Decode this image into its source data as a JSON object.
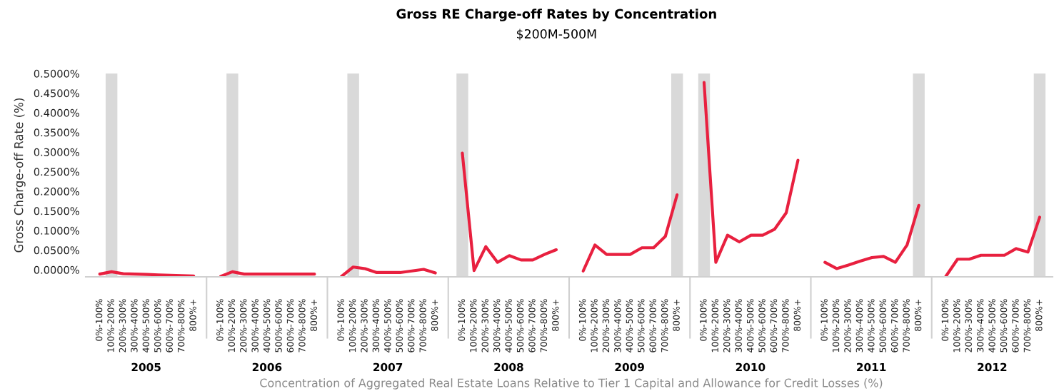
{
  "chart_data": [
    {
      "type": "line",
      "ylabel": "Gross Charge-off Rate (%)",
      "xlabel": "2005",
      "annotations": [
        "Concentration of Aggregated Real Estate Loans Relative to Tier 1 Capital and Allowance for Credit Losses (%)"
      ],
      "categories": [
        "0%-100%",
        "100%-200%",
        "200%-300%",
        "300%-400%",
        "400%-500%",
        "500%-600%",
        "600%-700%",
        "700%-800%",
        "800%+"
      ],
      "series": [
        {
          "color": "#e8203f",
          "values": [
            -0.011,
            -0.005,
            -0.01,
            -0.011,
            -0.012,
            -0.013,
            -0.014,
            -0.015,
            -0.016
          ]
        }
      ],
      "bands": [
        {
          "axis": "x",
          "from": "100%-200%",
          "to": "100%-200%",
          "color": "#d9d9d9"
        }
      ],
      "ylim": [
        -0.018,
        0.5
      ],
      "yticks": [
        {
          "value": 0,
          "label": "0.0000%"
        },
        {
          "value": 0.05,
          "label": "0.0500%"
        },
        {
          "value": 0.1,
          "label": "0.1000%"
        },
        {
          "value": 0.15,
          "label": "0.1500%"
        },
        {
          "value": 0.2,
          "label": "0.2000%"
        },
        {
          "value": 0.25,
          "label": "0.2500%"
        },
        {
          "value": 0.3,
          "label": "0.3000%"
        },
        {
          "value": 0.35,
          "label": "0.3500%"
        },
        {
          "value": 0.4,
          "label": "0.4000%"
        },
        {
          "value": 0.45,
          "label": "0.4500%"
        },
        {
          "value": 0.5,
          "label": "0.5000%"
        }
      ]
    },
    {
      "type": "line",
      "xlabel": "2006",
      "tick_labels": "x",
      "categories": [
        "0%-100%",
        "100%-200%",
        "200%-300%",
        "300%-400%",
        "400%-500%",
        "500%-600%",
        "600%-700%",
        "700%-800%",
        "800%+"
      ],
      "series": [
        {
          "color": "#e8203f",
          "values": [
            -0.017,
            -0.005,
            -0.011,
            -0.011,
            -0.011,
            -0.011,
            -0.011,
            -0.011,
            -0.011
          ]
        }
      ],
      "bands": [
        {
          "axis": "x",
          "from": "100%-200%",
          "to": "100%-200%",
          "color": "#d9d9d9"
        }
      ],
      "ylim": [
        -0.018,
        0.5
      ]
    },
    {
      "type": "line",
      "xlabel": "2007",
      "tick_labels": "x",
      "categories": [
        "0%-100%",
        "100%-200%",
        "200%-300%",
        "300%-400%",
        "400%-500%",
        "500%-600%",
        "600%-700%",
        "700%-800%",
        "800%+"
      ],
      "series": [
        {
          "color": "#e8203f",
          "values": [
            -0.017,
            0.007,
            0.003,
            -0.007,
            -0.007,
            -0.007,
            -0.003,
            0.001,
            -0.008
          ]
        }
      ],
      "bands": [
        {
          "axis": "x",
          "from": "100%-200%",
          "to": "100%-200%",
          "color": "#d9d9d9"
        }
      ],
      "ylim": [
        -0.018,
        0.5
      ]
    },
    {
      "type": "line",
      "title": "Gross RE Charge-off Rates by Concentration",
      "subtitle": "$200M-500M",
      "xlabel": "2008",
      "tick_labels": "x",
      "categories": [
        "0%-100%",
        "100%-200%",
        "200%-300%",
        "300%-400%",
        "400%-500%",
        "500%-600%",
        "600%-700%",
        "700%-800%",
        "800%+"
      ],
      "series": [
        {
          "color": "#e8203f",
          "values": [
            0.297,
            -0.002,
            0.059,
            0.019,
            0.036,
            0.025,
            0.025,
            0.039,
            0.051
          ]
        }
      ],
      "bands": [
        {
          "axis": "x",
          "from": "0%-100%",
          "to": "0%-100%",
          "color": "#d9d9d9"
        }
      ],
      "ylim": [
        -0.018,
        0.5
      ]
    },
    {
      "type": "line",
      "xlabel": "2009",
      "tick_labels": "x",
      "categories": [
        "0%-100%",
        "100%-200%",
        "200%-300%",
        "300%-400%",
        "400%-500%",
        "500%-600%",
        "600%-700%",
        "700%-800%",
        "800%+"
      ],
      "series": [
        {
          "color": "#e8203f",
          "values": [
            -0.003,
            0.063,
            0.039,
            0.039,
            0.039,
            0.056,
            0.056,
            0.085,
            0.191
          ]
        }
      ],
      "bands": [
        {
          "axis": "x",
          "from": "800%+",
          "to": "800%+",
          "color": "#d9d9d9"
        }
      ],
      "ylim": [
        -0.018,
        0.5
      ]
    },
    {
      "type": "line",
      "xlabel": "2010",
      "tick_labels": "x",
      "categories": [
        "0%-100%",
        "100%-200%",
        "200%-300%",
        "300%-400%",
        "400%-500%",
        "500%-600%",
        "600%-700%",
        "700%-800%",
        "800%+"
      ],
      "series": [
        {
          "color": "#e8203f",
          "values": [
            0.477,
            0.019,
            0.088,
            0.071,
            0.088,
            0.088,
            0.103,
            0.145,
            0.279
          ]
        }
      ],
      "bands": [
        {
          "axis": "x",
          "from": "0%-100%",
          "to": "0%-100%",
          "color": "#d9d9d9"
        }
      ],
      "ylim": [
        -0.018,
        0.5
      ]
    },
    {
      "type": "line",
      "xlabel": "2011",
      "tick_labels": "x",
      "categories": [
        "0%-100%",
        "100%-200%",
        "200%-300%",
        "300%-400%",
        "400%-500%",
        "500%-600%",
        "600%-700%",
        "700%-800%",
        "800%+"
      ],
      "series": [
        {
          "color": "#e8203f",
          "values": [
            0.019,
            0.003,
            0.012,
            0.022,
            0.031,
            0.034,
            0.019,
            0.063,
            0.164
          ]
        }
      ],
      "bands": [
        {
          "axis": "x",
          "from": "800%+",
          "to": "800%+",
          "color": "#d9d9d9"
        }
      ],
      "ylim": [
        -0.018,
        0.5
      ]
    },
    {
      "type": "line",
      "xlabel": "2012",
      "tick_labels": "x",
      "categories": [
        "0%-100%",
        "100%-200%",
        "200%-300%",
        "300%-400%",
        "400%-500%",
        "500%-600%",
        "600%-700%",
        "700%-800%",
        "800%+"
      ],
      "series": [
        {
          "color": "#e8203f",
          "values": [
            -0.017,
            0.027,
            0.027,
            0.037,
            0.037,
            0.037,
            0.054,
            0.045,
            0.134
          ]
        }
      ],
      "bands": [
        {
          "axis": "x",
          "from": "800%+",
          "to": "800%+",
          "color": "#d9d9d9"
        }
      ],
      "ylim": [
        -0.018,
        0.5
      ]
    }
  ]
}
